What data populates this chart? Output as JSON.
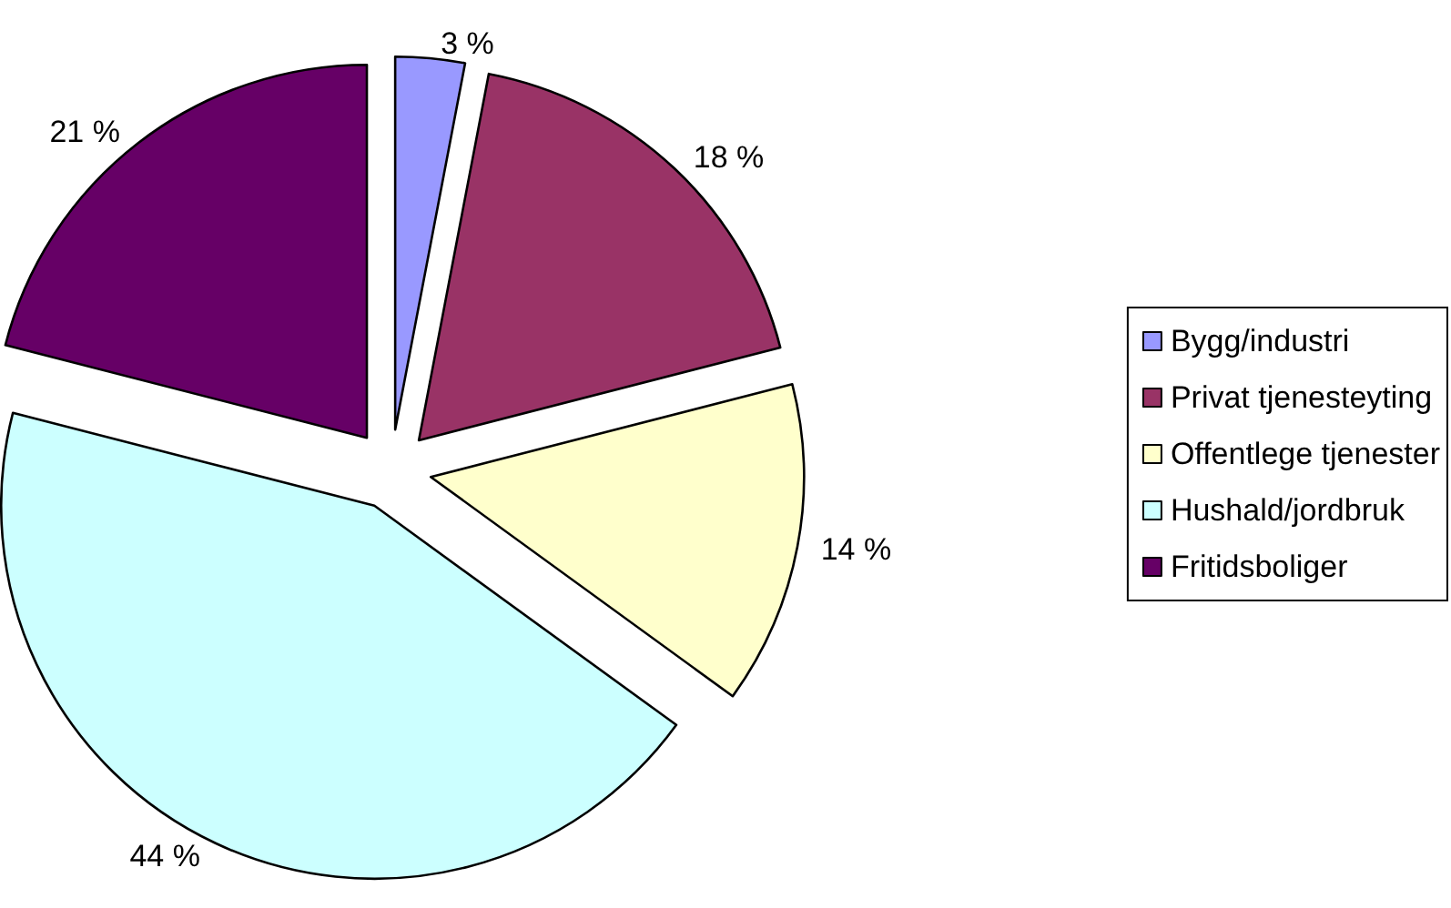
{
  "chart_data": {
    "type": "pie",
    "categories": [
      "Bygg/industri",
      "Privat tjenesteyting",
      "Offentlege tjenester",
      "Hushald/jordbruk",
      "Fritidsboliger"
    ],
    "values": [
      3,
      18,
      14,
      44,
      21
    ],
    "colors": [
      "#9999ff",
      "#993366",
      "#ffffcc",
      "#ccffff",
      "#660066"
    ],
    "value_labels": [
      "3 %",
      "18 %",
      "14 %",
      "44 %",
      "21 %"
    ],
    "legend": "right"
  }
}
